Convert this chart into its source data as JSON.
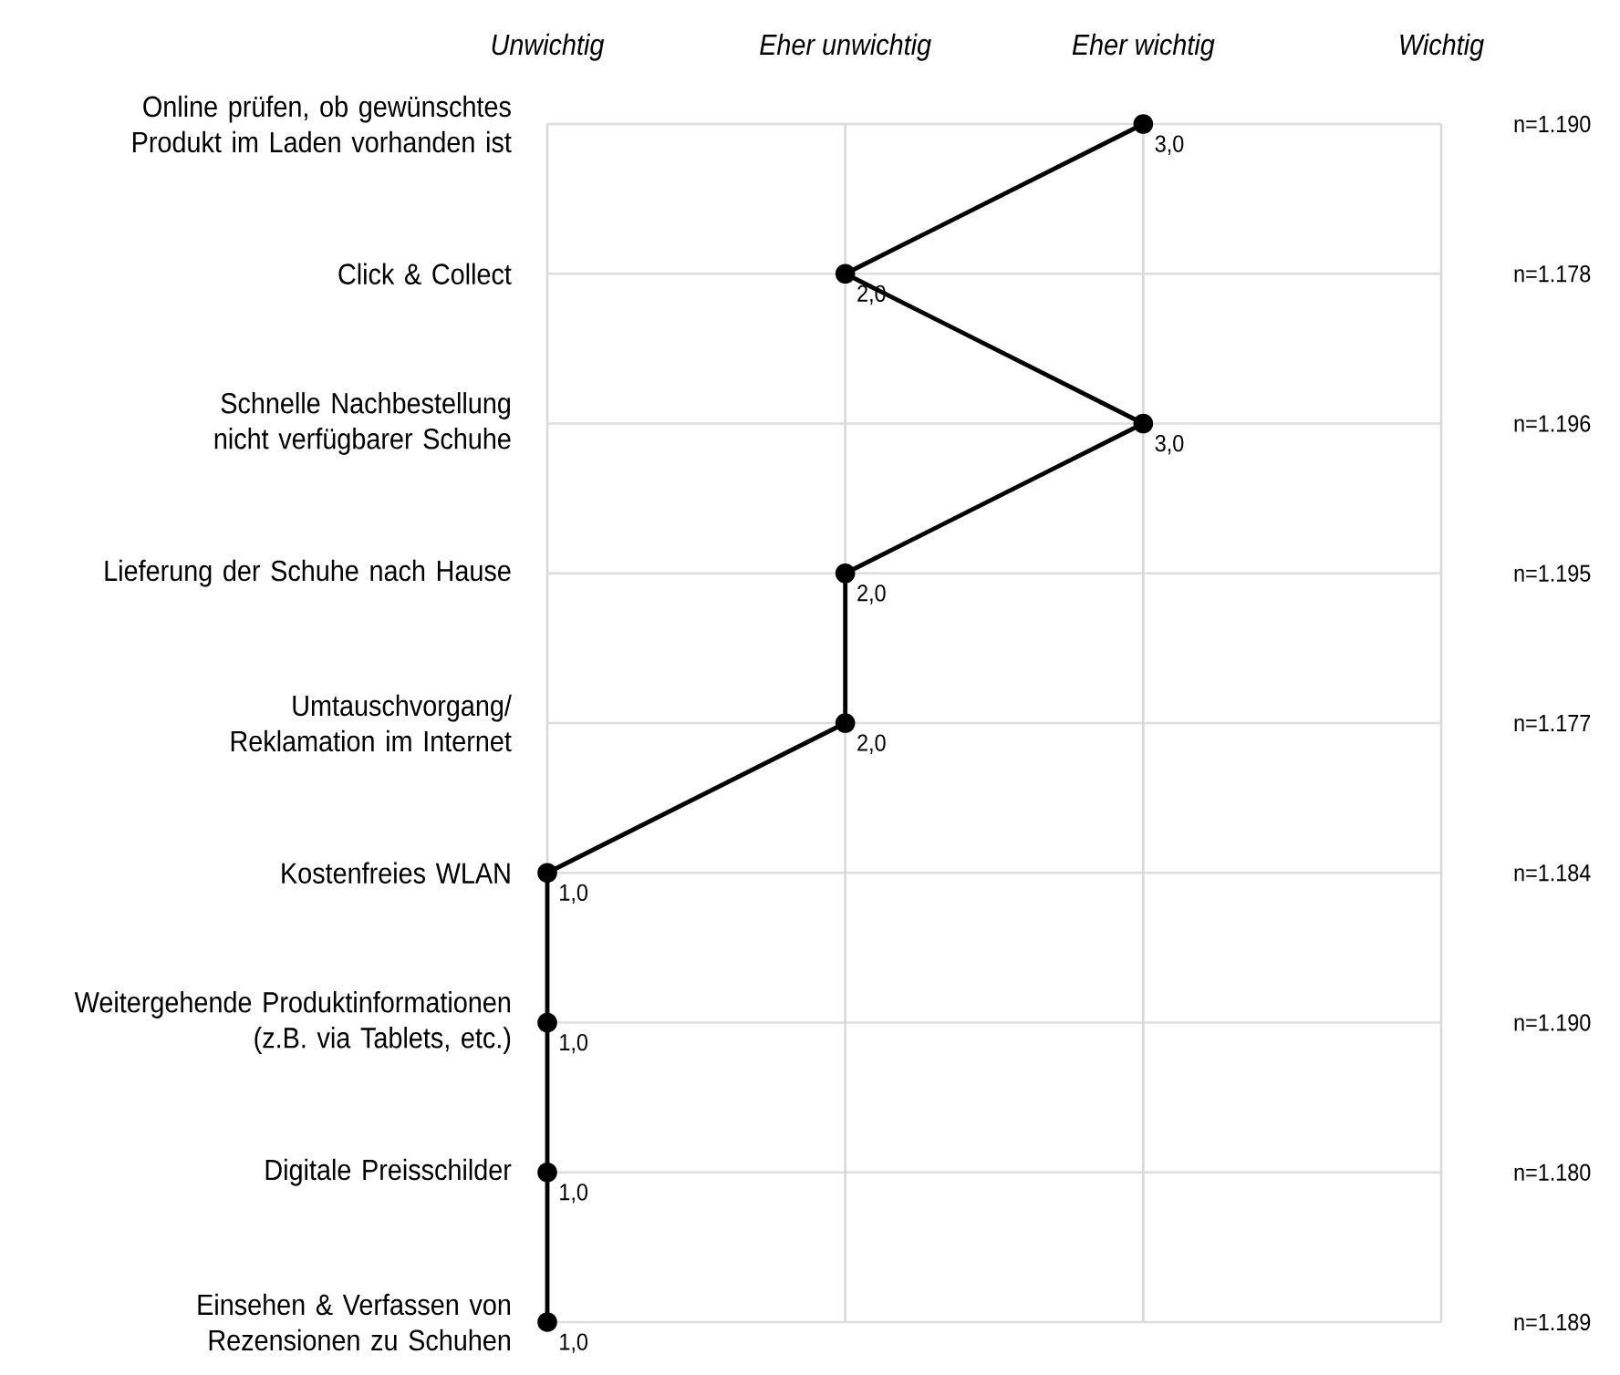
{
  "chart_data": {
    "type": "line",
    "orientation": "horizontal",
    "categories": [
      "Online prüfen, ob gewünschtes Produkt im Laden vorhanden ist",
      "Click & Collect",
      "Schnelle Nachbestellung nicht verfügbarer Schuhe",
      "Lieferung der Schuhe nach Hause",
      "Umtauschvorgang/ Reklamation im Internet",
      "Kostenfreies WLAN",
      "Weitergehende Produktinformationen (z.B. via Tablets, etc.)",
      "Digitale Preisschilder",
      "Einsehen & Verfassen von Rezensionen zu Schuhen"
    ],
    "series": [
      {
        "color": "#000000",
        "values": [
          3,
          2,
          3,
          2,
          2,
          1,
          1,
          1,
          1
        ],
        "value_labels": [
          "3,0",
          "2,0",
          "3,0",
          "2,0",
          "2,0",
          "1,0",
          "1,0",
          "1,0",
          "1,0"
        ]
      }
    ],
    "xlim": [
      1,
      4
    ],
    "ref_lines": [
      {
        "axis": "x",
        "value": 1,
        "label": "Unwichtig",
        "color": "#d9d9d9"
      },
      {
        "axis": "x",
        "value": 2,
        "label": "Eher unwichtig",
        "color": "#d9d9d9"
      },
      {
        "axis": "x",
        "value": 3,
        "label": "Eher wichtig",
        "color": "#d9d9d9"
      },
      {
        "axis": "x",
        "value": 4,
        "label": "Wichtig",
        "color": "#d9d9d9"
      }
    ],
    "grid": "y",
    "marker": "circle",
    "line_style": "solid",
    "annotations": [
      "n=1.190",
      "n=1.178",
      "n=1.196",
      "n=1.195",
      "n=1.177",
      "n=1.184",
      "n=1.190",
      "n=1.180",
      "n=1.189"
    ]
  }
}
